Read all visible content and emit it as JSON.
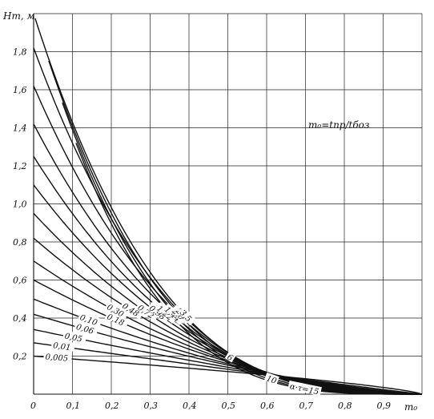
{
  "chart_data": {
    "type": "line",
    "title": "",
    "xlabel": "m₀",
    "ylabel": "Hт, м",
    "formula": "m₀=tпр/tбоз",
    "xlim": [
      0,
      1.0
    ],
    "ylim": [
      0,
      2.0
    ],
    "x_ticks": [
      "0",
      "0,1",
      "0,2",
      "0,3",
      "0,4",
      "0,5",
      "0,6",
      "0,7",
      "0,8",
      "0,9"
    ],
    "y_ticks": [
      "0,2",
      "0,4",
      "0,6",
      "0,8",
      "1,0",
      "1,2",
      "1,4",
      "1,6",
      "1,8"
    ],
    "grid": true,
    "series": [
      {
        "name": "0,005",
        "label_at": 0.03,
        "start_y": 0.2
      },
      {
        "name": "0,01",
        "label_at": 0.05,
        "start_y": 0.27
      },
      {
        "name": "0,05",
        "label_at": 0.08,
        "start_y": 0.34
      },
      {
        "name": "0,06",
        "label_at": 0.11,
        "start_y": 0.42
      },
      {
        "name": "0,10",
        "label_at": 0.12,
        "start_y": 0.5
      },
      {
        "name": "0,18",
        "label_at": 0.19,
        "start_y": 0.6
      },
      {
        "name": "0,30",
        "label_at": 0.19,
        "start_y": 0.7
      },
      {
        "name": "0,48",
        "label_at": 0.23,
        "start_y": 0.82
      },
      {
        "name": "0,72",
        "label_at": 0.27,
        "start_y": 0.95
      },
      {
        "name": "0,98",
        "label_at": 0.3,
        "start_y": 1.1
      },
      {
        "name": "1,22",
        "label_at": 0.32,
        "start_y": 1.25
      },
      {
        "name": "1,44",
        "label_at": 0.34,
        "start_y": 1.42
      },
      {
        "name": "2,0",
        "label_at": 0.36,
        "start_y": 1.62
      },
      {
        "name": "2,5",
        "label_at": 0.37,
        "start_y": 1.82
      },
      {
        "name": "3,5",
        "label_at": 0.38,
        "start_y": 2.0
      },
      {
        "name": "6",
        "label_at": 0.5,
        "start_y": 2.0
      },
      {
        "name": "10",
        "label_at": 0.6,
        "start_y": 2.0
      },
      {
        "name": "α·τ=15",
        "label_at": 0.66,
        "start_y": 2.0
      }
    ]
  }
}
